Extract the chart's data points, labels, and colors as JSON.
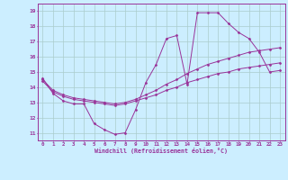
{
  "xlabel": "Windchill (Refroidissement éolien,°C)",
  "bg_color": "#cceeff",
  "grid_color": "#aacccc",
  "line_color": "#993399",
  "xlim": [
    -0.5,
    23.5
  ],
  "ylim": [
    10.5,
    19.5
  ],
  "xticks": [
    0,
    1,
    2,
    3,
    4,
    5,
    6,
    7,
    8,
    9,
    10,
    11,
    12,
    13,
    14,
    15,
    16,
    17,
    18,
    19,
    20,
    21,
    22,
    23
  ],
  "yticks": [
    11,
    12,
    13,
    14,
    15,
    16,
    17,
    18,
    19
  ],
  "series": [
    {
      "x": [
        0,
        1,
        2,
        3,
        4,
        5,
        6,
        7,
        8,
        9,
        10,
        11,
        12,
        13,
        14,
        15,
        16,
        17,
        18,
        19,
        20,
        21,
        22,
        23
      ],
      "y": [
        14.6,
        13.6,
        13.1,
        12.9,
        12.9,
        11.6,
        11.2,
        10.9,
        11.0,
        12.5,
        14.3,
        15.5,
        17.2,
        17.4,
        14.2,
        18.9,
        18.9,
        18.9,
        18.2,
        17.6,
        17.2,
        16.3,
        15.0,
        15.1
      ]
    },
    {
      "x": [
        0,
        1,
        2,
        3,
        4,
        5,
        6,
        7,
        8,
        9,
        10,
        11,
        12,
        13,
        14,
        15,
        16,
        17,
        18,
        19,
        20,
        21,
        22,
        23
      ],
      "y": [
        14.5,
        13.8,
        13.5,
        13.3,
        13.2,
        13.1,
        13.0,
        12.9,
        13.0,
        13.2,
        13.5,
        13.8,
        14.2,
        14.5,
        14.9,
        15.2,
        15.5,
        15.7,
        15.9,
        16.1,
        16.3,
        16.4,
        16.5,
        16.6
      ]
    },
    {
      "x": [
        0,
        1,
        2,
        3,
        4,
        5,
        6,
        7,
        8,
        9,
        10,
        11,
        12,
        13,
        14,
        15,
        16,
        17,
        18,
        19,
        20,
        21,
        22,
        23
      ],
      "y": [
        14.4,
        13.7,
        13.4,
        13.2,
        13.1,
        13.0,
        12.9,
        12.8,
        12.9,
        13.1,
        13.3,
        13.5,
        13.8,
        14.0,
        14.3,
        14.5,
        14.7,
        14.9,
        15.0,
        15.2,
        15.3,
        15.4,
        15.5,
        15.6
      ]
    }
  ]
}
